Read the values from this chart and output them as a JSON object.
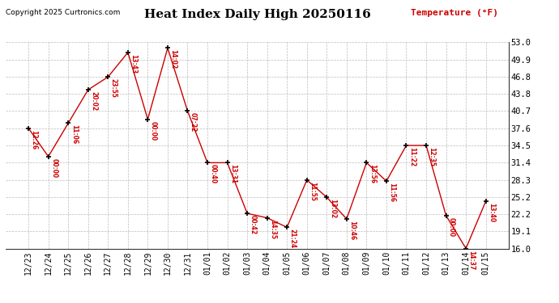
{
  "title": "Heat Index Daily High 20250116",
  "copyright": "Copyright 2025 Curtronics.com",
  "ylabel": "Temperature (°F)",
  "background_color": "#ffffff",
  "grid_color": "#bbbbbb",
  "line_color": "#cc0000",
  "marker_color": "#000000",
  "label_color": "#cc0000",
  "dates": [
    "12/23",
    "12/24",
    "12/25",
    "12/26",
    "12/27",
    "12/28",
    "12/29",
    "12/30",
    "12/31",
    "01/01",
    "01/02",
    "01/03",
    "01/04",
    "01/05",
    "01/06",
    "01/07",
    "01/08",
    "01/09",
    "01/10",
    "01/11",
    "01/12",
    "01/13",
    "01/14",
    "01/15"
  ],
  "values": [
    37.6,
    32.5,
    38.5,
    44.5,
    46.8,
    51.2,
    39.2,
    52.0,
    40.7,
    31.4,
    31.4,
    22.3,
    21.5,
    19.8,
    28.3,
    25.2,
    21.3,
    31.4,
    28.1,
    34.5,
    34.5,
    21.9,
    16.0,
    24.5
  ],
  "time_labels": [
    "12:26",
    "00:00",
    "11:06",
    "20:02",
    "23:55",
    "13:43",
    "00:00",
    "14:02",
    "07:22",
    "00:40",
    "13:31",
    "00:42",
    "14:35",
    "21:24",
    "11:55",
    "13:02",
    "10:46",
    "13:56",
    "11:56",
    "11:22",
    "12:35",
    "00:00",
    "14:37",
    "13:40"
  ],
  "ylim": [
    16.0,
    53.0
  ],
  "yticks": [
    16.0,
    19.1,
    22.2,
    25.2,
    28.3,
    31.4,
    34.5,
    37.6,
    40.7,
    43.8,
    46.8,
    49.9,
    53.0
  ]
}
